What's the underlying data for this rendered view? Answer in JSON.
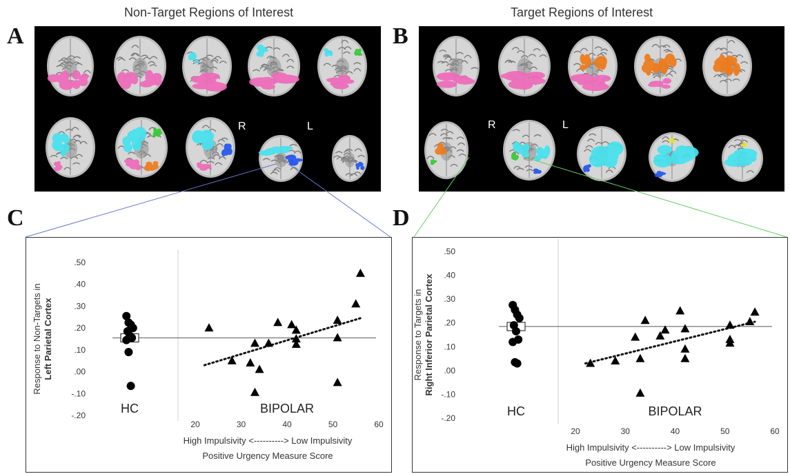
{
  "panels": {
    "A": {
      "letter": "A",
      "title": "Non-Target Regions of Interest",
      "orient_r": "R",
      "orient_l": "L"
    },
    "B": {
      "letter": "B",
      "title": "Target Regions of Interest",
      "orient_r": "R",
      "orient_l": "L"
    },
    "C": {
      "letter": "C"
    },
    "D": {
      "letter": "D"
    }
  },
  "colors": {
    "pink": "#f06aba",
    "cyan": "#45e3ef",
    "orange": "#f07a1a",
    "blue": "#2255ee",
    "green": "#33cc33",
    "yellow": "#e8e820",
    "connector_c": "#6677cc",
    "connector_d": "#66cc66"
  },
  "chart_data": [
    {
      "id": "C",
      "type": "scatter",
      "ylabel_line1": "Response to Non-Targets in",
      "ylabel_line2": "Left Parietal Cortex",
      "xlabel_line1": "High Impulsivity <----------> Low Impulsivity",
      "xlabel_line2": "Positive Urgency Measure Score",
      "ylim": [
        -0.2,
        0.5
      ],
      "yticks": [
        ".50",
        ".40",
        ".30",
        ".20",
        ".10",
        ".00",
        "-.10",
        "-.20"
      ],
      "xlim": [
        10,
        60
      ],
      "xticks": [
        "20",
        "30",
        "40",
        "50",
        "60"
      ],
      "group_labels": {
        "hc": "HC",
        "bipolar": "BIPOLAR"
      },
      "hc_mean": 0.155,
      "hc_points": [
        0.255,
        0.225,
        0.215,
        0.2,
        0.185,
        0.165,
        0.155,
        0.145,
        0.09,
        -0.065
      ],
      "bipolar_points": [
        {
          "x": 23,
          "y": 0.2
        },
        {
          "x": 28,
          "y": 0.05
        },
        {
          "x": 32,
          "y": 0.04
        },
        {
          "x": 33,
          "y": 0.13
        },
        {
          "x": 33,
          "y": -0.095
        },
        {
          "x": 34,
          "y": 0.01
        },
        {
          "x": 36,
          "y": 0.13
        },
        {
          "x": 38,
          "y": 0.225
        },
        {
          "x": 41,
          "y": 0.215
        },
        {
          "x": 42,
          "y": 0.19
        },
        {
          "x": 42,
          "y": 0.15
        },
        {
          "x": 42,
          "y": 0.125
        },
        {
          "x": 51,
          "y": 0.235
        },
        {
          "x": 51,
          "y": 0.155
        },
        {
          "x": 51,
          "y": -0.05
        },
        {
          "x": 55,
          "y": 0.31
        },
        {
          "x": 56,
          "y": 0.45
        }
      ],
      "trend": {
        "x": [
          22,
          56
        ],
        "y": [
          0.03,
          0.245
        ]
      },
      "grid": false
    },
    {
      "id": "D",
      "type": "scatter",
      "ylabel_line1": "Response to Targets in",
      "ylabel_line2": "Right Inferior Parietal Cortex",
      "xlabel_line1": "High Impulsivity <----------> Low Impulsivity",
      "xlabel_line2": "Positive Urgency Measure Score",
      "ylim": [
        -0.2,
        0.5
      ],
      "yticks": [
        ".50",
        ".40",
        ".30",
        ".20",
        ".10",
        ".00",
        "-.10",
        "-.20"
      ],
      "xlim": [
        10,
        60
      ],
      "xticks": [
        "20",
        "30",
        "40",
        "50",
        "60"
      ],
      "group_labels": {
        "hc": "HC",
        "bipolar": "BIPOLAR"
      },
      "hc_mean": 0.185,
      "hc_points": [
        0.275,
        0.255,
        0.235,
        0.22,
        0.19,
        0.165,
        0.13,
        0.12,
        0.035,
        0.03
      ],
      "bipolar_points": [
        {
          "x": 23,
          "y": 0.03
        },
        {
          "x": 28,
          "y": 0.04
        },
        {
          "x": 32,
          "y": 0.14
        },
        {
          "x": 33,
          "y": 0.05
        },
        {
          "x": 33,
          "y": -0.095
        },
        {
          "x": 34,
          "y": 0.21
        },
        {
          "x": 37,
          "y": 0.145
        },
        {
          "x": 38,
          "y": 0.17
        },
        {
          "x": 41,
          "y": 0.25
        },
        {
          "x": 42,
          "y": 0.175
        },
        {
          "x": 42,
          "y": 0.09
        },
        {
          "x": 42,
          "y": 0.05
        },
        {
          "x": 51,
          "y": 0.19
        },
        {
          "x": 51,
          "y": 0.13
        },
        {
          "x": 51,
          "y": 0.115
        },
        {
          "x": 55,
          "y": 0.205
        },
        {
          "x": 56,
          "y": 0.245
        }
      ],
      "trend": {
        "x": [
          22,
          56
        ],
        "y": [
          0.03,
          0.205
        ]
      },
      "grid": false
    }
  ]
}
